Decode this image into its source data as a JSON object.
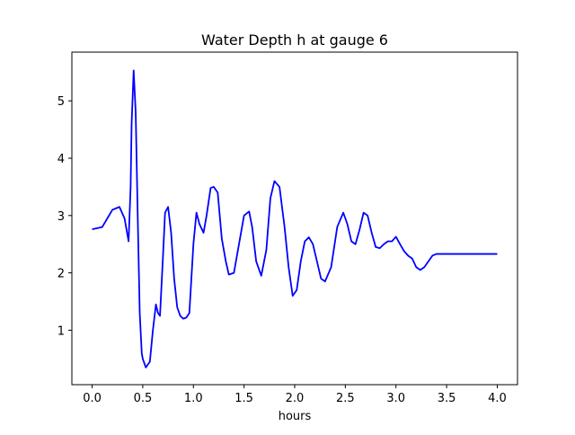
{
  "chart_data": {
    "type": "line",
    "title": "Water Depth h at gauge 6",
    "xlabel": "hours",
    "ylabel": "",
    "xlim": [
      -0.2,
      4.2
    ],
    "ylim": [
      0.05,
      5.85
    ],
    "xticks": [
      0.0,
      0.5,
      1.0,
      1.5,
      2.0,
      2.5,
      3.0,
      3.5,
      4.0
    ],
    "xtick_labels": [
      "0.0",
      "0.5",
      "1.0",
      "1.5",
      "2.0",
      "2.5",
      "3.0",
      "3.5",
      "4.0"
    ],
    "yticks": [
      1,
      2,
      3,
      4,
      5
    ],
    "ytick_labels": [
      "1",
      "2",
      "3",
      "4",
      "5"
    ],
    "grid": false,
    "series": [
      {
        "color": "#0000ff",
        "x": [
          0.0,
          0.05,
          0.1,
          0.15,
          0.2,
          0.27,
          0.32,
          0.36,
          0.38,
          0.39,
          0.41,
          0.43,
          0.45,
          0.47,
          0.49,
          0.5,
          0.53,
          0.57,
          0.6,
          0.63,
          0.65,
          0.67,
          0.7,
          0.72,
          0.75,
          0.78,
          0.81,
          0.84,
          0.87,
          0.9,
          0.93,
          0.96,
          1.0,
          1.03,
          1.06,
          1.1,
          1.13,
          1.17,
          1.2,
          1.24,
          1.28,
          1.32,
          1.35,
          1.4,
          1.45,
          1.5,
          1.55,
          1.58,
          1.62,
          1.67,
          1.72,
          1.76,
          1.8,
          1.85,
          1.9,
          1.94,
          1.98,
          2.02,
          2.06,
          2.1,
          2.14,
          2.18,
          2.22,
          2.26,
          2.3,
          2.36,
          2.42,
          2.48,
          2.52,
          2.56,
          2.6,
          2.64,
          2.68,
          2.72,
          2.76,
          2.8,
          2.84,
          2.88,
          2.92,
          2.96,
          3.0,
          3.04,
          3.08,
          3.12,
          3.16,
          3.2,
          3.24,
          3.28,
          3.32,
          3.36,
          3.4,
          3.45,
          3.5,
          3.54,
          3.58,
          3.62,
          3.66,
          3.7,
          3.75,
          3.8,
          3.85,
          3.9,
          3.95,
          4.0
        ],
        "y": [
          2.76,
          2.78,
          2.8,
          2.95,
          3.1,
          3.15,
          2.95,
          2.55,
          3.5,
          4.6,
          5.53,
          4.8,
          3.0,
          1.3,
          0.6,
          0.5,
          0.35,
          0.45,
          1.0,
          1.45,
          1.3,
          1.25,
          2.3,
          3.05,
          3.15,
          2.7,
          1.9,
          1.4,
          1.25,
          1.2,
          1.22,
          1.3,
          2.5,
          3.05,
          2.85,
          2.7,
          3.0,
          3.48,
          3.5,
          3.4,
          2.6,
          2.2,
          1.97,
          2.0,
          2.5,
          3.0,
          3.07,
          2.8,
          2.2,
          1.95,
          2.4,
          3.3,
          3.6,
          3.5,
          2.8,
          2.1,
          1.6,
          1.7,
          2.2,
          2.55,
          2.62,
          2.5,
          2.2,
          1.9,
          1.85,
          2.1,
          2.8,
          3.05,
          2.85,
          2.55,
          2.5,
          2.75,
          3.05,
          3.0,
          2.7,
          2.45,
          2.43,
          2.5,
          2.55,
          2.55,
          2.63,
          2.5,
          2.38,
          2.3,
          2.25,
          2.1,
          2.05,
          2.1,
          2.2,
          2.3,
          2.33,
          2.33,
          2.33,
          2.33,
          2.33,
          2.33,
          2.33,
          2.33,
          2.33,
          2.33,
          2.33,
          2.33,
          2.33,
          2.33
        ]
      }
    ]
  }
}
